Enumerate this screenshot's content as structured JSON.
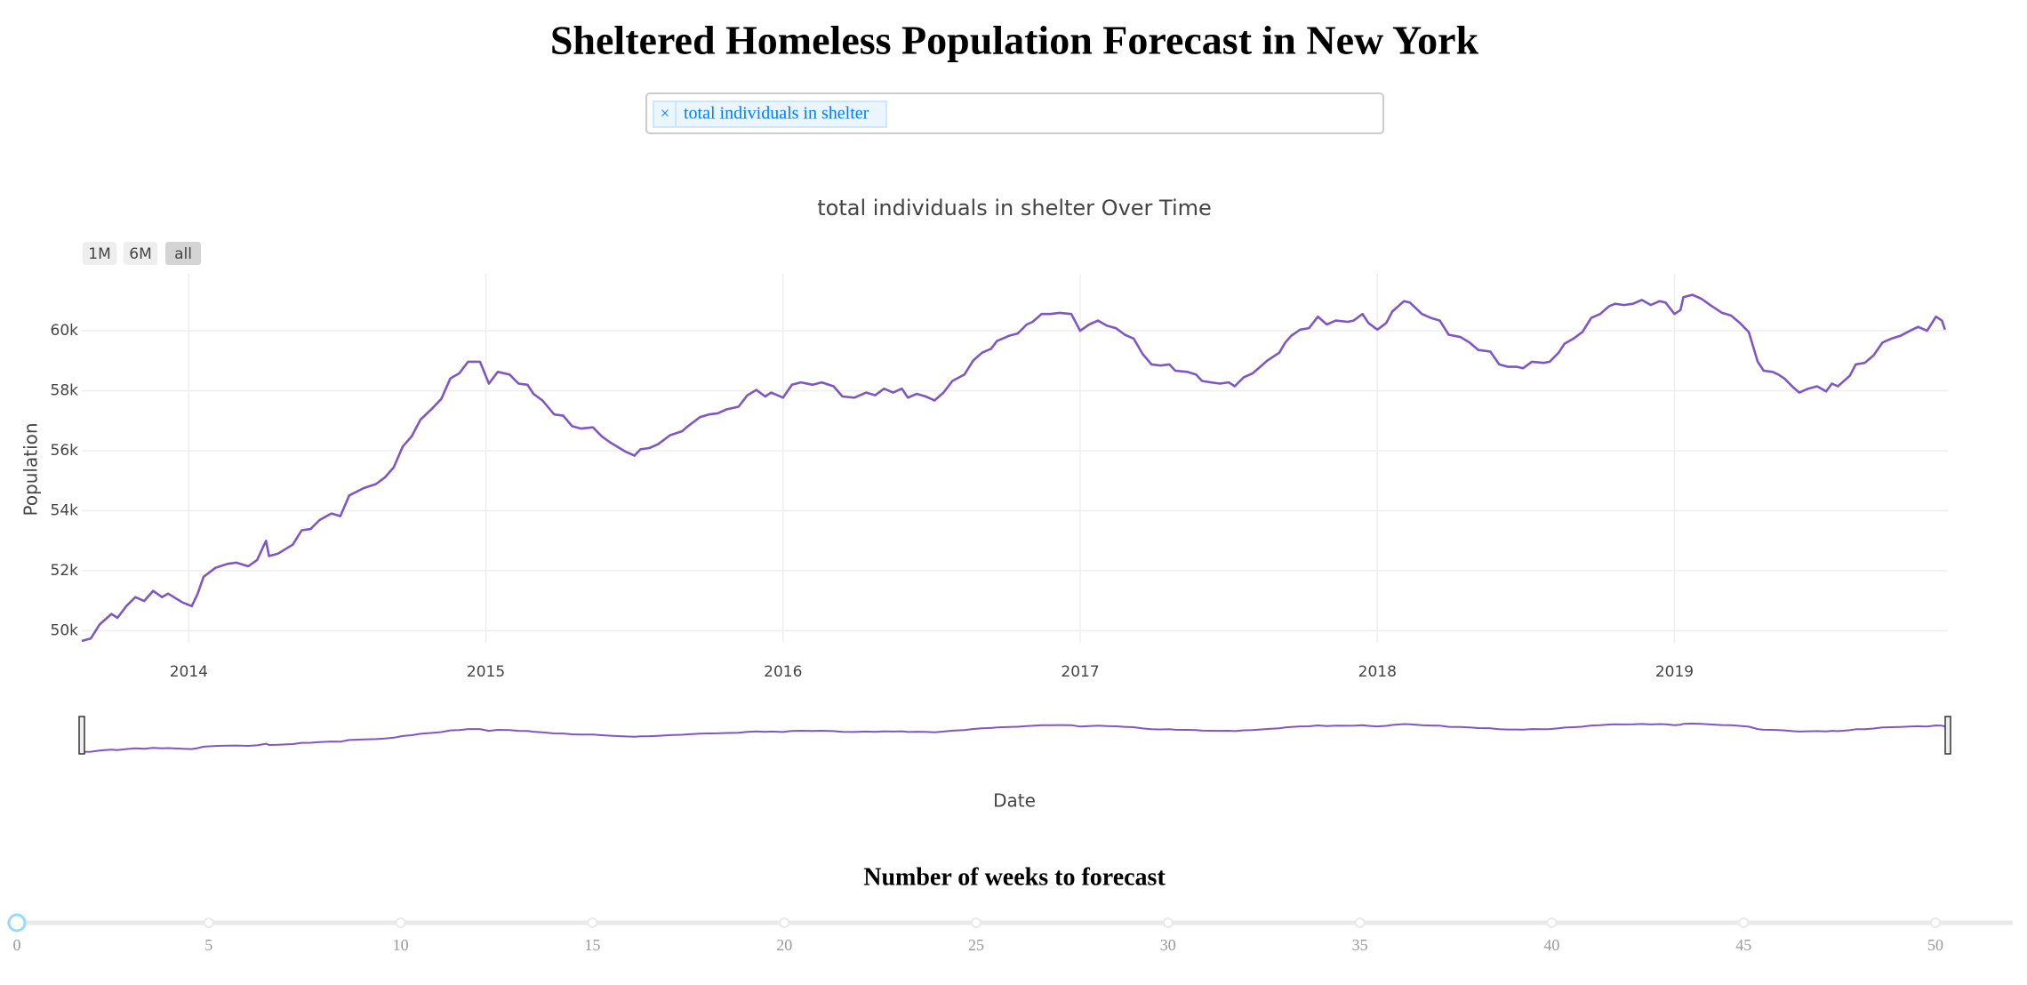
{
  "header": {
    "title": "Sheltered Homeless Population Forecast in New York"
  },
  "dropdown": {
    "clear": "×",
    "selected_tag": "total individuals in shelter"
  },
  "range_buttons": [
    "1M",
    "6M",
    "all"
  ],
  "chart_data": {
    "type": "line",
    "title": "total individuals in shelter Over Time",
    "xlabel": "Date",
    "ylabel": "Population",
    "color": "#7e57c2",
    "grid": true,
    "xlim": [
      2013.64,
      2019.92
    ],
    "xticks": [
      2014,
      2015,
      2016,
      2017,
      2018,
      2019
    ],
    "ylim": [
      49600,
      61900
    ],
    "yticks": [
      {
        "value": 50000,
        "label": "50k"
      },
      {
        "value": 52000,
        "label": "52k"
      },
      {
        "value": 54000,
        "label": "54k"
      },
      {
        "value": 56000,
        "label": "56k"
      },
      {
        "value": 58000,
        "label": "58k"
      },
      {
        "value": 60000,
        "label": "60k"
      }
    ],
    "x": [
      2013.64,
      2013.67,
      2013.7,
      2013.74,
      2013.76,
      2013.79,
      2013.82,
      2013.85,
      2013.88,
      2013.91,
      2013.93,
      2013.98,
      2014.01,
      2014.03,
      2014.05,
      2014.09,
      2014.13,
      2014.16,
      2014.2,
      2014.23,
      2014.26,
      2014.27,
      2014.3,
      2014.35,
      2014.38,
      2014.41,
      2014.44,
      2014.48,
      2014.51,
      2014.54,
      2014.59,
      2014.63,
      2014.66,
      2014.69,
      2014.72,
      2014.75,
      2014.78,
      2014.82,
      2014.85,
      2014.88,
      2014.91,
      2014.94,
      2014.98,
      2015.01,
      2015.04,
      2015.08,
      2015.11,
      2015.14,
      2015.16,
      2015.19,
      2015.23,
      2015.26,
      2015.29,
      2015.32,
      2015.36,
      2015.39,
      2015.42,
      2015.47,
      2015.5,
      2015.52,
      2015.55,
      2015.58,
      2015.62,
      2015.66,
      2015.68,
      2015.72,
      2015.75,
      2015.78,
      2015.81,
      2015.85,
      2015.88,
      2015.91,
      2015.94,
      2015.96,
      2016.0,
      2016.03,
      2016.06,
      2016.1,
      2016.13,
      2016.17,
      2016.2,
      2016.24,
      2016.28,
      2016.31,
      2016.34,
      2016.37,
      2016.4,
      2016.42,
      2016.45,
      2016.48,
      2016.51,
      2016.54,
      2016.57,
      2016.61,
      2016.64,
      2016.67,
      2016.7,
      2016.72,
      2016.76,
      2016.79,
      2016.82,
      2016.84,
      2016.87,
      2016.9,
      2016.93,
      2016.97,
      2017.0,
      2017.03,
      2017.06,
      2017.09,
      2017.12,
      2017.15,
      2017.18,
      2017.21,
      2017.24,
      2017.27,
      2017.3,
      2017.32,
      2017.36,
      2017.39,
      2017.41,
      2017.44,
      2017.47,
      2017.5,
      2017.52,
      2017.55,
      2017.58,
      2017.6,
      2017.63,
      2017.67,
      2017.69,
      2017.71,
      2017.74,
      2017.77,
      2017.8,
      2017.83,
      2017.86,
      2017.9,
      2017.92,
      2017.95,
      2017.97,
      2018.0,
      2018.03,
      2018.05,
      2018.09,
      2018.11,
      2018.15,
      2018.18,
      2018.21,
      2018.24,
      2018.28,
      2018.31,
      2018.34,
      2018.38,
      2018.41,
      2018.44,
      2018.47,
      2018.49,
      2018.52,
      2018.56,
      2018.58,
      2018.61,
      2018.63,
      2018.66,
      2018.69,
      2018.72,
      2018.75,
      2018.78,
      2018.8,
      2018.83,
      2018.86,
      2018.89,
      2018.92,
      2018.95,
      2018.97,
      2019.0,
      2019.02,
      2019.03,
      2019.06,
      2019.09,
      2019.12,
      2019.16,
      2019.19,
      2019.22,
      2019.25,
      2019.28,
      2019.3,
      2019.33,
      2019.35,
      2019.37,
      2019.4,
      2019.42,
      2019.45,
      2019.48,
      2019.51,
      2019.53,
      2019.55,
      2019.59,
      2019.61,
      2019.64,
      2019.67,
      2019.7,
      2019.73,
      2019.76,
      2019.8,
      2019.82,
      2019.85,
      2019.88,
      2019.9,
      2019.91
    ],
    "values": [
      49660,
      49740,
      50210,
      50560,
      50430,
      50820,
      51120,
      50990,
      51330,
      51120,
      51240,
      50940,
      50820,
      51240,
      51800,
      52100,
      52230,
      52270,
      52150,
      52360,
      53000,
      52490,
      52570,
      52870,
      53350,
      53390,
      53690,
      53910,
      53820,
      54510,
      54760,
      54890,
      55110,
      55450,
      56140,
      56480,
      57040,
      57420,
      57730,
      58410,
      58580,
      58970,
      58970,
      58240,
      58630,
      58540,
      58240,
      58200,
      57900,
      57680,
      57210,
      57170,
      56820,
      56740,
      56780,
      56480,
      56270,
      55970,
      55840,
      56050,
      56090,
      56220,
      56520,
      56650,
      56820,
      57120,
      57210,
      57250,
      57380,
      57470,
      57850,
      58030,
      57810,
      57940,
      57770,
      58200,
      58280,
      58200,
      58280,
      58150,
      57810,
      57770,
      57940,
      57850,
      58070,
      57940,
      58070,
      57770,
      57900,
      57810,
      57680,
      57940,
      58330,
      58540,
      59010,
      59270,
      59400,
      59660,
      59830,
      59910,
      60210,
      60300,
      60560,
      60560,
      60600,
      60560,
      60000,
      60210,
      60340,
      60170,
      60090,
      59870,
      59740,
      59230,
      58880,
      58840,
      58880,
      58670,
      58630,
      58540,
      58330,
      58280,
      58240,
      58280,
      58150,
      58450,
      58580,
      58750,
      59010,
      59270,
      59610,
      59830,
      60040,
      60090,
      60470,
      60210,
      60340,
      60300,
      60340,
      60560,
      60260,
      60040,
      60260,
      60640,
      60990,
      60940,
      60560,
      60430,
      60340,
      59870,
      59790,
      59610,
      59360,
      59310,
      58880,
      58800,
      58800,
      58750,
      58970,
      58930,
      58970,
      59270,
      59570,
      59740,
      59960,
      60430,
      60560,
      60820,
      60900,
      60860,
      60900,
      61030,
      60860,
      60990,
      60940,
      60560,
      60690,
      61120,
      61200,
      61070,
      60860,
      60600,
      60510,
      60260,
      59960,
      58970,
      58670,
      58630,
      58540,
      58410,
      58110,
      57940,
      58070,
      58150,
      57980,
      58240,
      58150,
      58500,
      58880,
      58930,
      59180,
      59610,
      59740,
      59830,
      60040,
      60130,
      60000,
      60470,
      60340,
      60040
    ]
  },
  "slider": {
    "label": "Number of weeks to forecast",
    "value": 0,
    "marks": [
      0,
      5,
      10,
      15,
      20,
      25,
      30,
      35,
      40,
      45,
      50
    ]
  }
}
